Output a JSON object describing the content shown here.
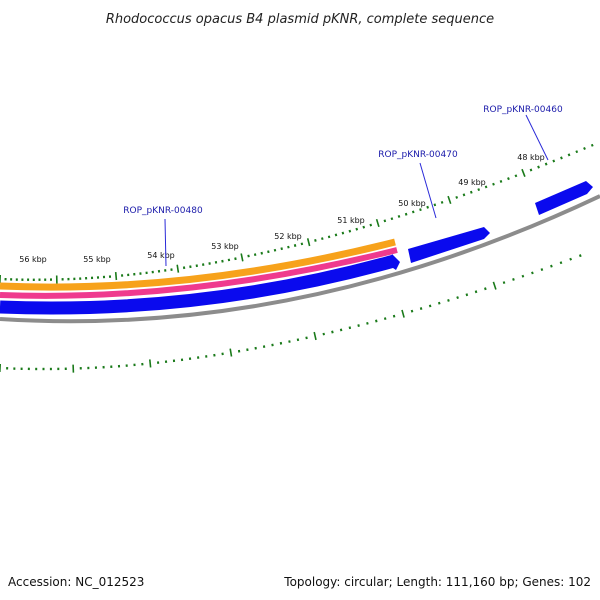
{
  "title": "Rhodococcus opacus B4 plasmid pKNR, complete sequence",
  "footer": {
    "accession": "Accession: NC_012523",
    "summary": "Topology: circular; Length: 111,160 bp; Genes: 102"
  },
  "kbp_labels": [
    "56 kbp",
    "55 kbp",
    "54 kbp",
    "53 kbp",
    "52 kbp",
    "51 kbp",
    "50 kbp",
    "49 kbp",
    "48 kbp"
  ],
  "gene_labels": [
    {
      "text": "ROP_pKNR-00480"
    },
    {
      "text": "ROP_pKNR-00470"
    },
    {
      "text": "ROP_pKNR-00460"
    }
  ],
  "colors": {
    "gene_cds": "#0a0aee",
    "orange_track": "#f7a21b",
    "pink_track": "#ef3a8e",
    "backbone": "#8c8c8c",
    "ticks": "#1a7a1a",
    "gene_label": "#1a1aaa"
  }
}
